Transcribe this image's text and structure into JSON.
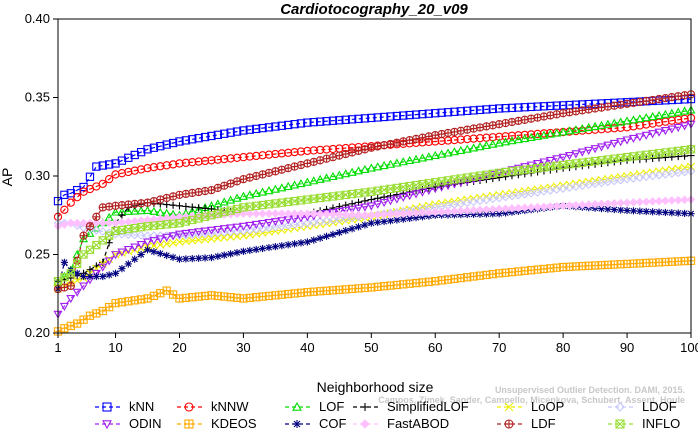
{
  "chart_data": {
    "type": "line",
    "title": "Cardiotocography_20_v09",
    "xlabel": "Neighborhood size",
    "ylabel": "AP",
    "xlim": [
      1,
      100
    ],
    "ylim": [
      0.2,
      0.4
    ],
    "xticks": [
      1,
      10,
      20,
      30,
      40,
      50,
      60,
      70,
      80,
      90,
      100
    ],
    "yticks": [
      0.2,
      0.25,
      0.3,
      0.35,
      0.4
    ],
    "legend_position": "bottom",
    "watermark": "Unsupervised Outlier Detection. DAMI, 2015. Campos, Zimek, Sander, Campello, Micenkova, Schubert, Assent, Houle",
    "series": [
      {
        "name": "kNN",
        "color": "#0000ff",
        "marker": "square",
        "x": [
          1,
          2,
          3,
          5,
          7,
          10,
          15,
          20,
          30,
          40,
          50,
          60,
          70,
          80,
          90,
          100
        ],
        "y": [
          0.284,
          0.288,
          0.289,
          0.293,
          0.306,
          0.308,
          0.317,
          0.322,
          0.329,
          0.334,
          0.337,
          0.34,
          0.343,
          0.345,
          0.347,
          0.349
        ]
      },
      {
        "name": "kNNW",
        "color": "#ff0000",
        "marker": "circle",
        "x": [
          1,
          3,
          5,
          8,
          10,
          15,
          20,
          30,
          40,
          50,
          60,
          70,
          80,
          90,
          100
        ],
        "y": [
          0.274,
          0.283,
          0.29,
          0.295,
          0.301,
          0.305,
          0.308,
          0.312,
          0.316,
          0.319,
          0.322,
          0.325,
          0.328,
          0.331,
          0.337
        ]
      },
      {
        "name": "LOF",
        "color": "#00dd00",
        "marker": "triangle",
        "x": [
          1,
          3,
          5,
          10,
          15,
          20,
          30,
          40,
          50,
          60,
          70,
          80,
          90,
          100
        ],
        "y": [
          0.232,
          0.24,
          0.26,
          0.277,
          0.278,
          0.275,
          0.287,
          0.296,
          0.305,
          0.313,
          0.321,
          0.328,
          0.335,
          0.342
        ]
      },
      {
        "name": "SimplifiedLOF",
        "color": "#000000",
        "marker": "plus",
        "x": [
          1,
          3,
          5,
          8,
          10,
          12,
          15,
          20,
          25,
          30,
          40,
          50,
          60,
          70,
          80,
          90,
          100
        ],
        "y": [
          0.233,
          0.235,
          0.238,
          0.245,
          0.27,
          0.28,
          0.283,
          0.281,
          0.279,
          0.276,
          0.276,
          0.285,
          0.293,
          0.299,
          0.305,
          0.31,
          0.313
        ]
      },
      {
        "name": "LoOP",
        "color": "#eeee00",
        "marker": "x",
        "x": [
          1,
          3,
          5,
          10,
          15,
          20,
          30,
          40,
          50,
          60,
          70,
          80,
          90,
          100
        ],
        "y": [
          0.228,
          0.232,
          0.235,
          0.25,
          0.255,
          0.258,
          0.262,
          0.268,
          0.274,
          0.282,
          0.288,
          0.294,
          0.3,
          0.306
        ]
      },
      {
        "name": "LDOF",
        "color": "#c8c8ff",
        "marker": "diamond",
        "x": [
          1,
          3,
          5,
          10,
          15,
          20,
          30,
          40,
          50,
          60,
          70,
          80,
          90,
          100
        ],
        "y": [
          0.27,
          0.27,
          0.267,
          0.263,
          0.262,
          0.262,
          0.265,
          0.27,
          0.275,
          0.28,
          0.286,
          0.292,
          0.298,
          0.303
        ]
      },
      {
        "name": "ODIN",
        "color": "#a020f0",
        "marker": "triangle-down",
        "x": [
          1,
          3,
          5,
          10,
          15,
          20,
          30,
          40,
          50,
          60,
          70,
          80,
          90,
          100
        ],
        "y": [
          0.212,
          0.222,
          0.23,
          0.25,
          0.258,
          0.263,
          0.268,
          0.274,
          0.281,
          0.292,
          0.302,
          0.312,
          0.323,
          0.333
        ]
      },
      {
        "name": "KDEOS",
        "color": "#ffaa00",
        "marker": "square-cross",
        "x": [
          1,
          2,
          4,
          6,
          8,
          10,
          15,
          18,
          20,
          25,
          30,
          40,
          50,
          60,
          70,
          80,
          90,
          100
        ],
        "y": [
          0.201,
          0.203,
          0.206,
          0.211,
          0.214,
          0.219,
          0.222,
          0.227,
          0.222,
          0.224,
          0.222,
          0.226,
          0.229,
          0.233,
          0.238,
          0.242,
          0.244,
          0.246
        ]
      },
      {
        "name": "COF",
        "color": "#000080",
        "marker": "asterisk",
        "x": [
          1,
          2,
          3,
          5,
          8,
          10,
          15,
          20,
          25,
          30,
          40,
          50,
          60,
          70,
          80,
          90,
          100
        ],
        "y": [
          0.228,
          0.245,
          0.24,
          0.236,
          0.236,
          0.238,
          0.253,
          0.247,
          0.248,
          0.252,
          0.258,
          0.27,
          0.275,
          0.276,
          0.281,
          0.278,
          0.276
        ]
      },
      {
        "name": "FastABOD",
        "color": "#ffc0ff",
        "marker": "diamond-filled",
        "x": [
          1,
          3,
          5,
          10,
          15,
          20,
          30,
          40,
          50,
          60,
          70,
          80,
          90,
          100
        ],
        "y": [
          0.268,
          0.27,
          0.27,
          0.27,
          0.272,
          0.274,
          0.276,
          0.276,
          0.275,
          0.277,
          0.279,
          0.281,
          0.283,
          0.285
        ]
      },
      {
        "name": "LDF",
        "color": "#b22222",
        "marker": "circle-plus",
        "x": [
          1,
          3,
          5,
          8,
          10,
          15,
          20,
          25,
          30,
          40,
          50,
          60,
          70,
          80,
          90,
          100
        ],
        "y": [
          0.228,
          0.23,
          0.262,
          0.28,
          0.281,
          0.283,
          0.288,
          0.291,
          0.298,
          0.308,
          0.318,
          0.326,
          0.333,
          0.34,
          0.346,
          0.352
        ]
      },
      {
        "name": "INFLO",
        "color": "#99dd33",
        "marker": "square-x",
        "x": [
          1,
          3,
          5,
          10,
          15,
          20,
          30,
          40,
          50,
          60,
          70,
          80,
          90,
          100
        ],
        "y": [
          0.233,
          0.238,
          0.25,
          0.265,
          0.268,
          0.27,
          0.28,
          0.285,
          0.29,
          0.296,
          0.302,
          0.307,
          0.312,
          0.317
        ]
      }
    ]
  }
}
